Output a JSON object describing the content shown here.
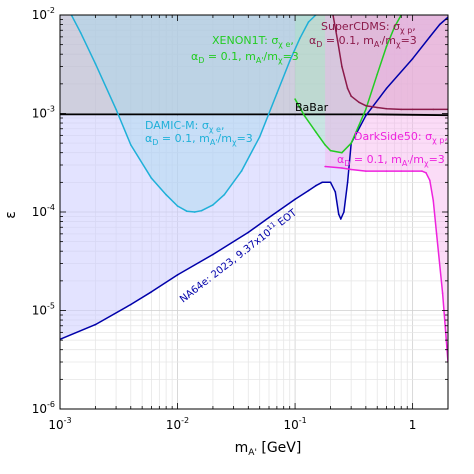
{
  "chart_data": {
    "type": "line",
    "xlabel_base": "m",
    "xlabel_sub": "A'",
    "xlabel_unit": " [GeV]",
    "ylabel": "ε",
    "xscale": "log",
    "yscale": "log",
    "xlim": [
      0.001,
      2
    ],
    "ylim": [
      1e-06,
      0.01
    ],
    "grid": true,
    "x_ticks": [
      {
        "value": 0.001,
        "base": "10",
        "exp": "-3"
      },
      {
        "value": 0.01,
        "base": "10",
        "exp": "-2"
      },
      {
        "value": 0.1,
        "base": "10",
        "exp": "-1"
      },
      {
        "value": 1,
        "base": "1",
        "exp": ""
      }
    ],
    "y_ticks": [
      {
        "value": 1e-06,
        "base": "10",
        "exp": "-6"
      },
      {
        "value": 1e-05,
        "base": "10",
        "exp": "-5"
      },
      {
        "value": 0.0001,
        "base": "10",
        "exp": "-4"
      },
      {
        "value": 0.001,
        "base": "10",
        "exp": "-3"
      },
      {
        "value": 0.01,
        "base": "10",
        "exp": "-2"
      }
    ],
    "series": [
      {
        "key": "babar",
        "color": "#000000",
        "fill": "#b6b6b6",
        "x": [
          0.001,
          0.01,
          0.1,
          0.5,
          1,
          2
        ],
        "y": [
          0.00098,
          0.00098,
          0.00098,
          0.00098,
          0.00097,
          0.00096
        ]
      },
      {
        "key": "na64e",
        "color": "#0000aa",
        "fill": "#ccccff",
        "x": [
          0.001,
          0.002,
          0.004,
          0.006,
          0.01,
          0.02,
          0.04,
          0.06,
          0.1,
          0.13,
          0.15,
          0.17,
          0.2,
          0.22,
          0.235,
          0.245,
          0.26,
          0.28,
          0.3,
          0.4,
          0.6,
          1.0,
          1.4,
          1.7,
          2.0
        ],
        "y": [
          5.1e-06,
          7.2e-06,
          1.15e-05,
          1.55e-05,
          2.3e-05,
          3.7e-05,
          6.2e-05,
          8.8e-05,
          0.000135,
          0.000165,
          0.000185,
          0.0002,
          0.0002,
          0.00016,
          9.5e-05,
          8.5e-05,
          0.0001,
          0.0002,
          0.0005,
          0.00095,
          0.0018,
          0.0036,
          0.006,
          0.008,
          0.0095
        ]
      },
      {
        "key": "damic",
        "color": "#1fb0d8",
        "fill": "#a7d7ee",
        "x": [
          0.00125,
          0.0015,
          0.002,
          0.003,
          0.004,
          0.006,
          0.008,
          0.01,
          0.012,
          0.014,
          0.016,
          0.02,
          0.025,
          0.035,
          0.05,
          0.07,
          0.09,
          0.11,
          0.13,
          0.15
        ],
        "y": [
          0.01,
          0.0066,
          0.0032,
          0.0011,
          0.00048,
          0.00022,
          0.00015,
          0.000115,
          0.000102,
          0.0001,
          0.000103,
          0.000118,
          0.00015,
          0.00026,
          0.00058,
          0.0016,
          0.0034,
          0.0058,
          0.0085,
          0.01
        ]
      },
      {
        "key": "xenon",
        "color": "#22cc22",
        "fill": "#a8e4c2",
        "x": [
          0.1,
          0.12,
          0.15,
          0.18,
          0.2,
          0.25,
          0.3,
          0.4,
          0.5,
          0.6,
          0.7,
          0.8
        ],
        "y": [
          0.0014,
          0.00095,
          0.00065,
          0.00048,
          0.00042,
          0.0004,
          0.0005,
          0.0011,
          0.0025,
          0.0048,
          0.0075,
          0.01
        ]
      },
      {
        "key": "supercdms",
        "color": "#8b1a4a",
        "fill": "#e3a6c4",
        "x": [
          0.21,
          0.23,
          0.25,
          0.28,
          0.3,
          0.35,
          0.4,
          0.5,
          0.6,
          0.8,
          1.0,
          1.5,
          2.0
        ],
        "y": [
          0.01,
          0.0055,
          0.003,
          0.0018,
          0.0015,
          0.0013,
          0.0012,
          0.00115,
          0.00112,
          0.0011,
          0.0011,
          0.0011,
          0.0011
        ]
      },
      {
        "key": "darkside",
        "color": "#ee22dd",
        "fill": "#f7b2ee",
        "x": [
          0.18,
          0.25,
          0.3,
          0.4,
          0.6,
          0.8,
          1.0,
          1.2,
          1.3,
          1.4,
          1.5,
          1.6,
          1.8,
          2.0
        ],
        "y": [
          0.00029,
          0.00028,
          0.00027,
          0.00026,
          0.00026,
          0.00026,
          0.00026,
          0.00026,
          0.00025,
          0.00021,
          0.00013,
          6e-05,
          1.5e-05,
          3e-06
        ]
      }
    ],
    "labels": {
      "babar": "BaBar",
      "na64": "NA64e: 2023, 9.37x10",
      "na64_exp": "11",
      "na64_tail": " EOT",
      "damic_line1": "DAMIC-M: σ",
      "damic_line1_sub": "χ e",
      "damic_line1_tail": ",",
      "xenon_line1": "XENON1T: σ",
      "xenon_line1_sub": "χ e",
      "xenon_line1_tail": ",",
      "supercdms_line1": "SuperCDMS: σ",
      "supercdms_line1_sub": "χ p",
      "supercdms_line1_tail": ",",
      "darkside_line1": "DarkSide50: σ",
      "darkside_line1_sub": "χ p",
      "darkside_line1_tail": ",",
      "params_a": "α",
      "params_a_sub": "D",
      "params_b": " = 0.1, m",
      "params_b_sub": "A'",
      "params_c": "/m",
      "params_c_sub": "χ",
      "params_d": "=3"
    }
  }
}
